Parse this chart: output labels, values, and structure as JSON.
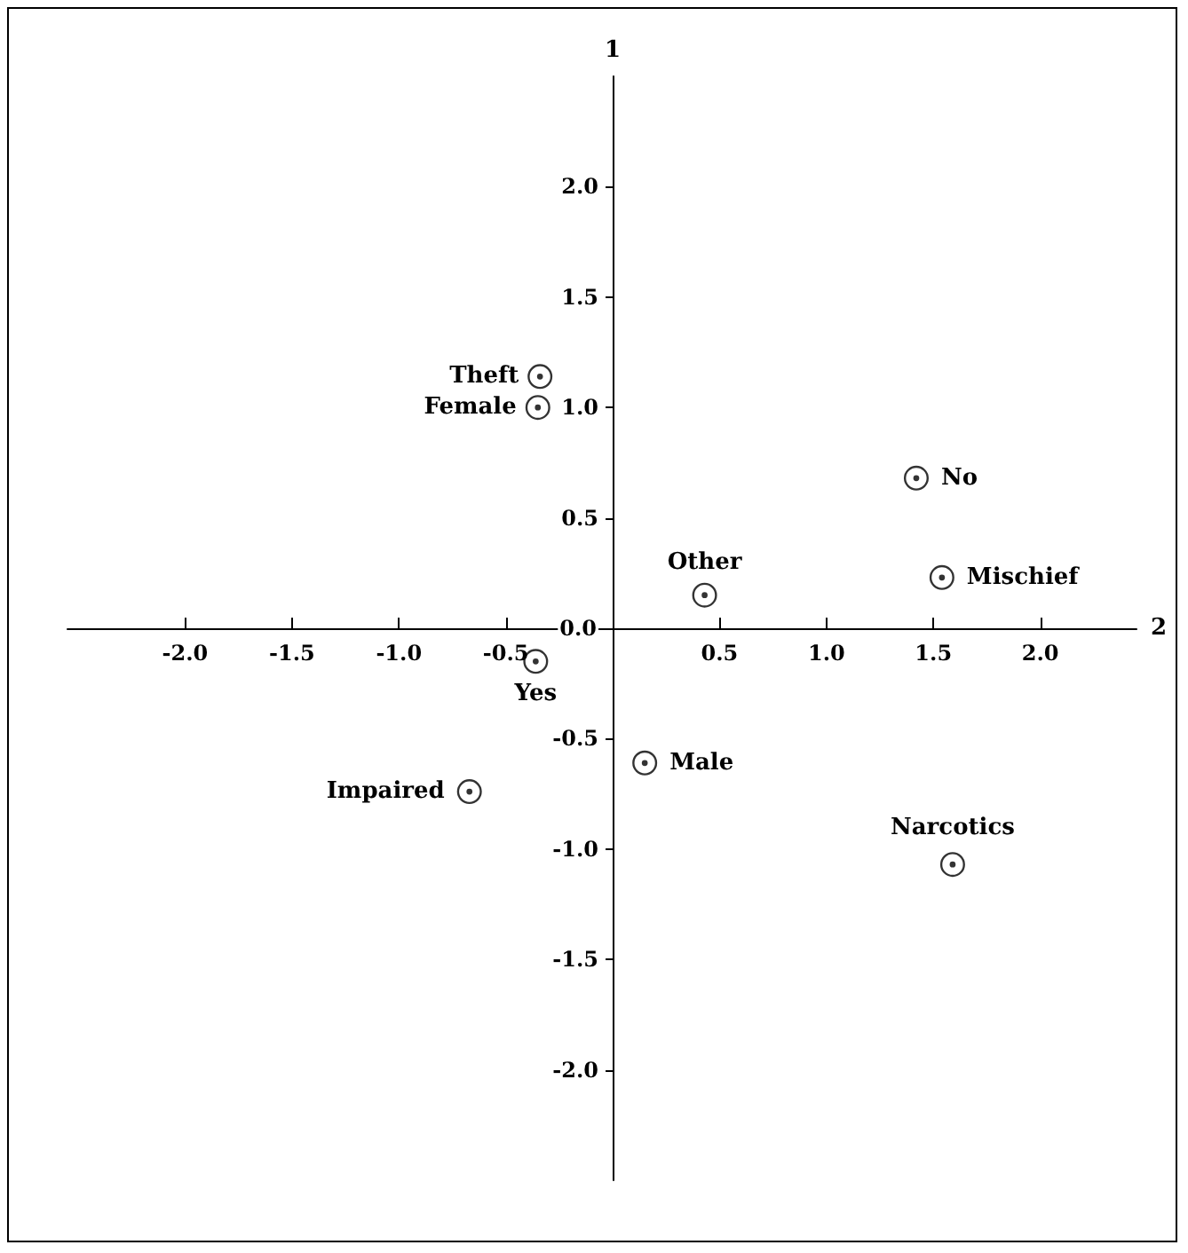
{
  "chart_data": {
    "type": "scatter",
    "xlabel": "2",
    "ylabel": "1",
    "x": [
      -0.34,
      -0.35,
      -0.36,
      -0.67,
      0.15,
      0.43,
      1.42,
      1.54,
      1.59
    ],
    "series": [
      {
        "color": "#000000",
        "values": [
          1.14,
          1.0,
          -0.15,
          -0.74,
          -0.61,
          0.15,
          0.68,
          0.23,
          -1.07
        ]
      }
    ],
    "xlim": [
      -2.55,
      2.45
    ],
    "ylim": [
      -2.5,
      2.5
    ],
    "xticks": [
      {
        "value": -2,
        "label": "-2.0"
      },
      {
        "value": -1.5,
        "label": "-1.5"
      },
      {
        "value": -1,
        "label": "-1.0"
      },
      {
        "value": -0.5,
        "label": "-0.5"
      },
      {
        "value": 0.5,
        "label": "0.5"
      },
      {
        "value": 1,
        "label": "1.0"
      },
      {
        "value": 1.5,
        "label": "1.5"
      },
      {
        "value": 2,
        "label": "2.0"
      }
    ],
    "yticks": [
      {
        "value": -2,
        "label": "-2.0"
      },
      {
        "value": -1.5,
        "label": "-1.5"
      },
      {
        "value": -1,
        "label": "-1.0"
      },
      {
        "value": -0.5,
        "label": "-0.5"
      },
      {
        "value": 0,
        "label": "0.0"
      },
      {
        "value": 0.5,
        "label": "0.5"
      },
      {
        "value": 1,
        "label": "1.0"
      },
      {
        "value": 1.5,
        "label": "1.5"
      },
      {
        "value": 2,
        "label": "2.0"
      }
    ],
    "annotations": [
      {
        "text": "Theft",
        "x": -0.34,
        "y": 1.14
      },
      {
        "text": "Female",
        "x": -0.35,
        "y": 1.0
      },
      {
        "text": "Yes",
        "x": -0.36,
        "y": -0.15
      },
      {
        "text": "Impaired",
        "x": -0.67,
        "y": -0.74
      },
      {
        "text": "Male",
        "x": 0.15,
        "y": -0.61
      },
      {
        "text": "Other",
        "x": 0.43,
        "y": 0.15
      },
      {
        "text": "No",
        "x": 1.42,
        "y": 0.68
      },
      {
        "text": "Mischief",
        "x": 1.54,
        "y": 0.23
      },
      {
        "text": "Narcotics",
        "x": 1.59,
        "y": -1.07
      }
    ],
    "grid": false,
    "marker": "circle"
  }
}
